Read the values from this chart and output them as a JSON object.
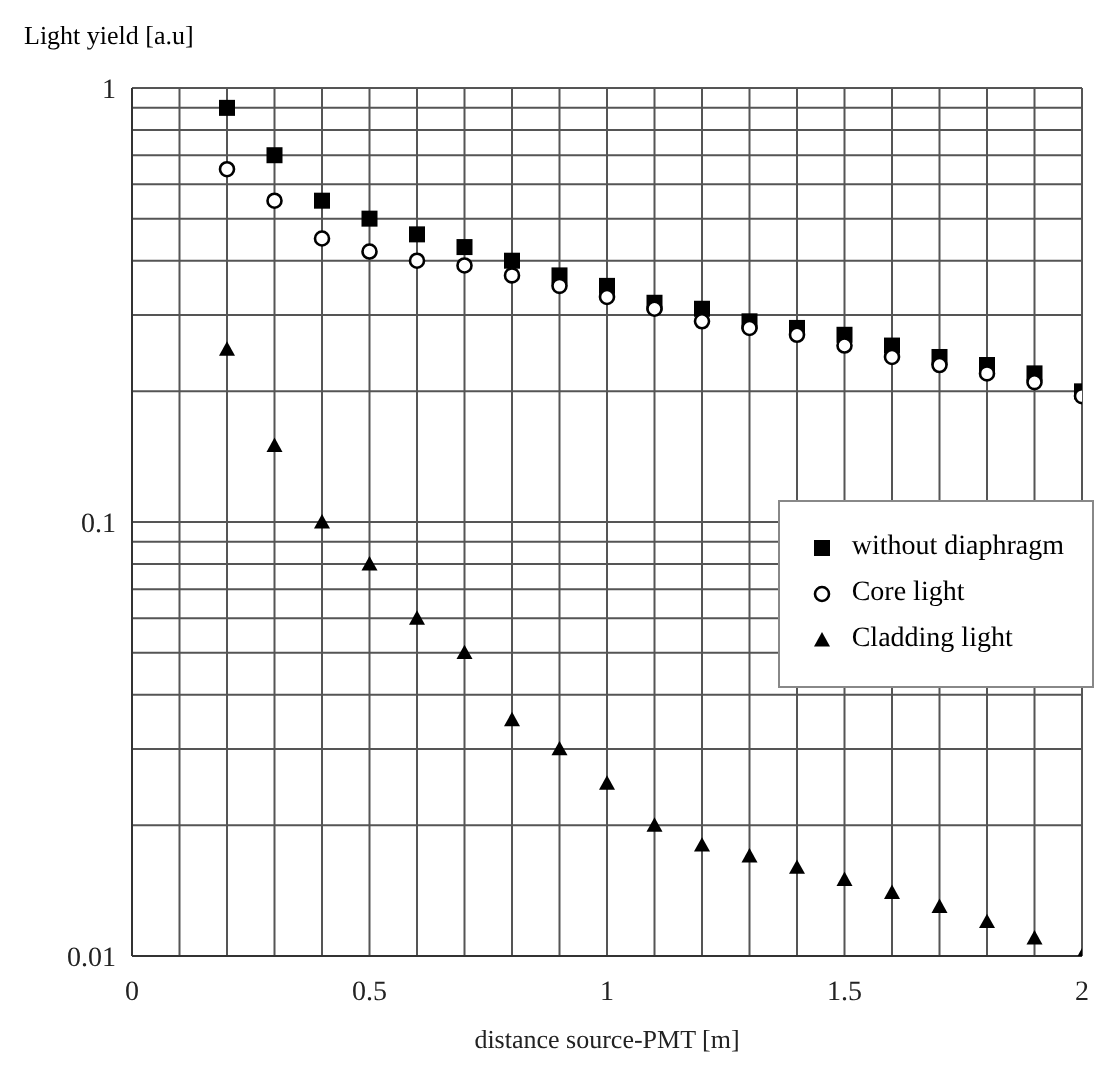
{
  "chart_data": {
    "type": "scatter",
    "xlabel": "distance source-PMT [m]",
    "ylabel": "Light yield [a.u]",
    "x": [
      0.2,
      0.3,
      0.4,
      0.5,
      0.6,
      0.7,
      0.8,
      0.9,
      1.0,
      1.1,
      1.2,
      1.3,
      1.4,
      1.5,
      1.6,
      1.7,
      1.8,
      1.9,
      2.0
    ],
    "series": [
      {
        "name": "without diaphragm",
        "color": "#000000",
        "marker": "square",
        "values": [
          0.9,
          0.7,
          0.55,
          0.5,
          0.46,
          0.43,
          0.4,
          0.37,
          0.35,
          0.32,
          0.31,
          0.29,
          0.28,
          0.27,
          0.255,
          0.24,
          0.23,
          0.22,
          0.2
        ]
      },
      {
        "name": "Core light",
        "color": "#000000",
        "marker": "circle",
        "values": [
          0.65,
          0.55,
          0.45,
          0.42,
          0.4,
          0.39,
          0.37,
          0.35,
          0.33,
          0.31,
          0.29,
          0.28,
          0.27,
          0.255,
          0.24,
          0.23,
          0.22,
          0.21,
          0.195
        ]
      },
      {
        "name": "Cladding light",
        "color": "#000000",
        "marker": "triangle",
        "values": [
          0.25,
          0.15,
          0.1,
          0.08,
          0.06,
          0.05,
          0.035,
          0.03,
          0.025,
          0.02,
          0.018,
          0.017,
          0.016,
          0.015,
          0.014,
          0.013,
          0.012,
          0.011,
          0.01
        ]
      }
    ],
    "log": "y",
    "xlim": [
      0,
      2
    ],
    "ylim": [
      0.01,
      1
    ],
    "xticks": [
      0,
      {
        "value": 0.1,
        "label": null
      },
      {
        "value": 0.2,
        "label": null
      },
      {
        "value": 0.3,
        "label": null
      },
      {
        "value": 0.4,
        "label": null
      },
      0.5,
      {
        "value": 0.6,
        "label": null
      },
      {
        "value": 0.7,
        "label": null
      },
      {
        "value": 0.8,
        "label": null
      },
      {
        "value": 0.9,
        "label": null
      },
      1,
      {
        "value": 1.1,
        "label": null
      },
      {
        "value": 1.2,
        "label": null
      },
      {
        "value": 1.3,
        "label": null
      },
      {
        "value": 1.4,
        "label": null
      },
      1.5,
      {
        "value": 1.6,
        "label": null
      },
      {
        "value": 1.7,
        "label": null
      },
      {
        "value": 1.8,
        "label": null
      },
      {
        "value": 1.9,
        "label": null
      },
      2
    ],
    "yticks": [
      0.01,
      {
        "value": 0.02,
        "label": null
      },
      {
        "value": 0.03,
        "label": null
      },
      {
        "value": 0.04,
        "label": null
      },
      {
        "value": 0.05,
        "label": null
      },
      {
        "value": 0.06,
        "label": null
      },
      {
        "value": 0.07,
        "label": null
      },
      {
        "value": 0.08,
        "label": null
      },
      {
        "value": 0.09,
        "label": null
      },
      0.1,
      {
        "value": 0.2,
        "label": null
      },
      {
        "value": 0.3,
        "label": null
      },
      {
        "value": 0.4,
        "label": null
      },
      {
        "value": 0.5,
        "label": null
      },
      {
        "value": 0.6,
        "label": null
      },
      {
        "value": 0.7,
        "label": null
      },
      {
        "value": 0.8,
        "label": null
      },
      {
        "value": 0.9,
        "label": null
      },
      1
    ],
    "grid": true,
    "legend": "right"
  }
}
